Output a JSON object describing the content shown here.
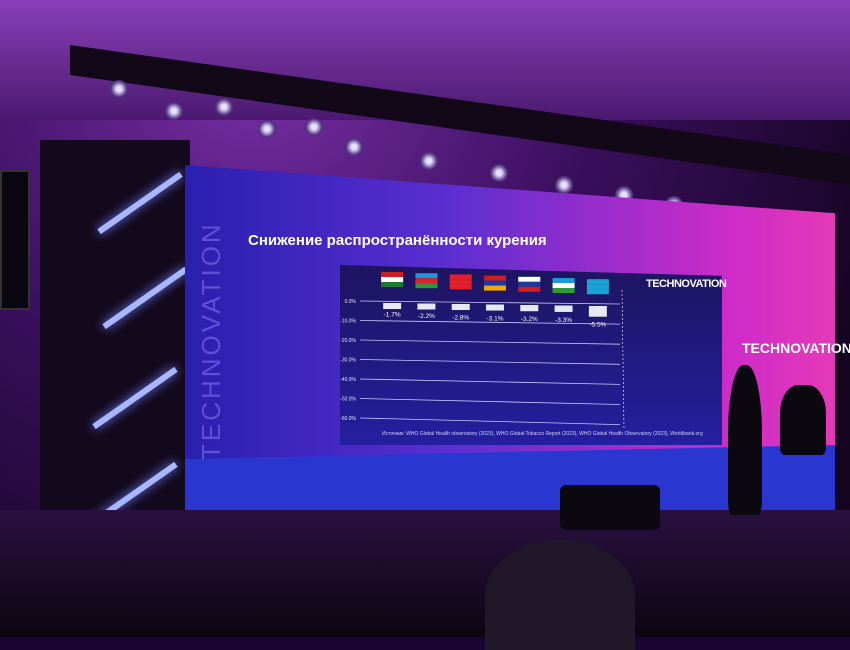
{
  "slide": {
    "title": "Снижение распространённости курения",
    "source": "Источник: WHO Global Health observatory (2023), WHO Global Tobacco Report (2023), WHO Global Health Observatory (2023), Worldbank.org",
    "brand": "TECHNOVATION",
    "side_text": "TECHNOVATION"
  },
  "stage_screen": {
    "brand": "TECHNOVATION"
  },
  "chart_data": {
    "type": "bar",
    "categories": [
      "Tajikistan",
      "Azerbaijan",
      "Kyrgyzstan",
      "Armenia",
      "Russia",
      "Uzbekistan",
      "Kazakhstan"
    ],
    "flag_colors": [
      [
        "#d01c1f",
        "#ffffff",
        "#1a7a2e"
      ],
      [
        "#1a9ad6",
        "#e0202a",
        "#2a9a3a"
      ],
      [
        "#e0202a",
        "#e0202a",
        "#e0202a"
      ],
      [
        "#d01c1f",
        "#1a3aa0",
        "#f2a800"
      ],
      [
        "#ffffff",
        "#1a3aa0",
        "#d01c1f"
      ],
      [
        "#1a9ad6",
        "#ffffff",
        "#2a9a3a"
      ],
      [
        "#1aa5d6",
        "#1aa5d6",
        "#1aa5d6"
      ]
    ],
    "values": [
      -1.7,
      -2.2,
      -2.8,
      -3.1,
      -3.2,
      -3.3,
      -5.5
    ],
    "data_labels": [
      "-1.7%",
      "-2.2%",
      "-2.8%",
      "-3.1%",
      "-3.2%",
      "-3.3%",
      "-5.5%"
    ],
    "yticks": [
      "0.0%",
      "-10.0%",
      "-20.0%",
      "-30.0%",
      "-40.0%",
      "-50.0%",
      "-60.0%"
    ],
    "ylim": [
      -60,
      0
    ],
    "grid": true
  }
}
